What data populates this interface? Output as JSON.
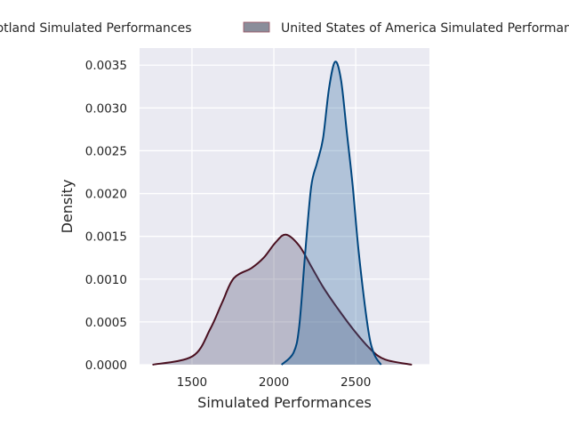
{
  "chart_data": {
    "type": "area",
    "title": "",
    "xlabel": "Simulated Performances",
    "ylabel": "Density",
    "xlim": [
      1180,
      2950
    ],
    "ylim": [
      0,
      0.0037
    ],
    "xticks": [
      1500,
      2000,
      2500
    ],
    "xtick_labels": [
      "1500",
      "2000",
      "2500"
    ],
    "yticks": [
      0,
      0.0005,
      0.001,
      0.0015,
      0.002,
      0.0025,
      0.003,
      0.0035
    ],
    "ytick_labels": [
      "0.0000",
      "0.0005",
      "0.0010",
      "0.0015",
      "0.0020",
      "0.0025",
      "0.0030",
      "0.0035"
    ],
    "grid": true,
    "legend_placement": "top-center (outside, clipped)",
    "series": [
      {
        "name": "Scotland Simulated Performances",
        "color": "#4a1020",
        "fill": "#4a4a6a",
        "x": [
          1259,
          1504,
          1612,
          1685,
          1755,
          1864,
          1938,
          2011,
          2074,
          2155,
          2228,
          2300,
          2374,
          2482,
          2591,
          2680,
          2843
        ],
        "y": [
          0,
          0.0001,
          0.00042,
          0.00073,
          0.00101,
          0.00113,
          0.00125,
          0.00143,
          0.00152,
          0.00139,
          0.00115,
          0.00091,
          0.0007,
          0.00042,
          0.00018,
          6e-05,
          0
        ]
      },
      {
        "name": "United States of America Simulated Performances",
        "color": "#00467f",
        "fill": "#2e6aa0",
        "x": [
          2047,
          2120,
          2155,
          2192,
          2228,
          2264,
          2300,
          2337,
          2374,
          2410,
          2446,
          2482,
          2518,
          2573,
          2609,
          2655
        ],
        "y": [
          0,
          0.00014,
          0.00045,
          0.00132,
          0.00208,
          0.00236,
          0.00264,
          0.00323,
          0.00354,
          0.00333,
          0.00271,
          0.00208,
          0.00132,
          0.00045,
          0.00014,
          0
        ]
      }
    ]
  }
}
